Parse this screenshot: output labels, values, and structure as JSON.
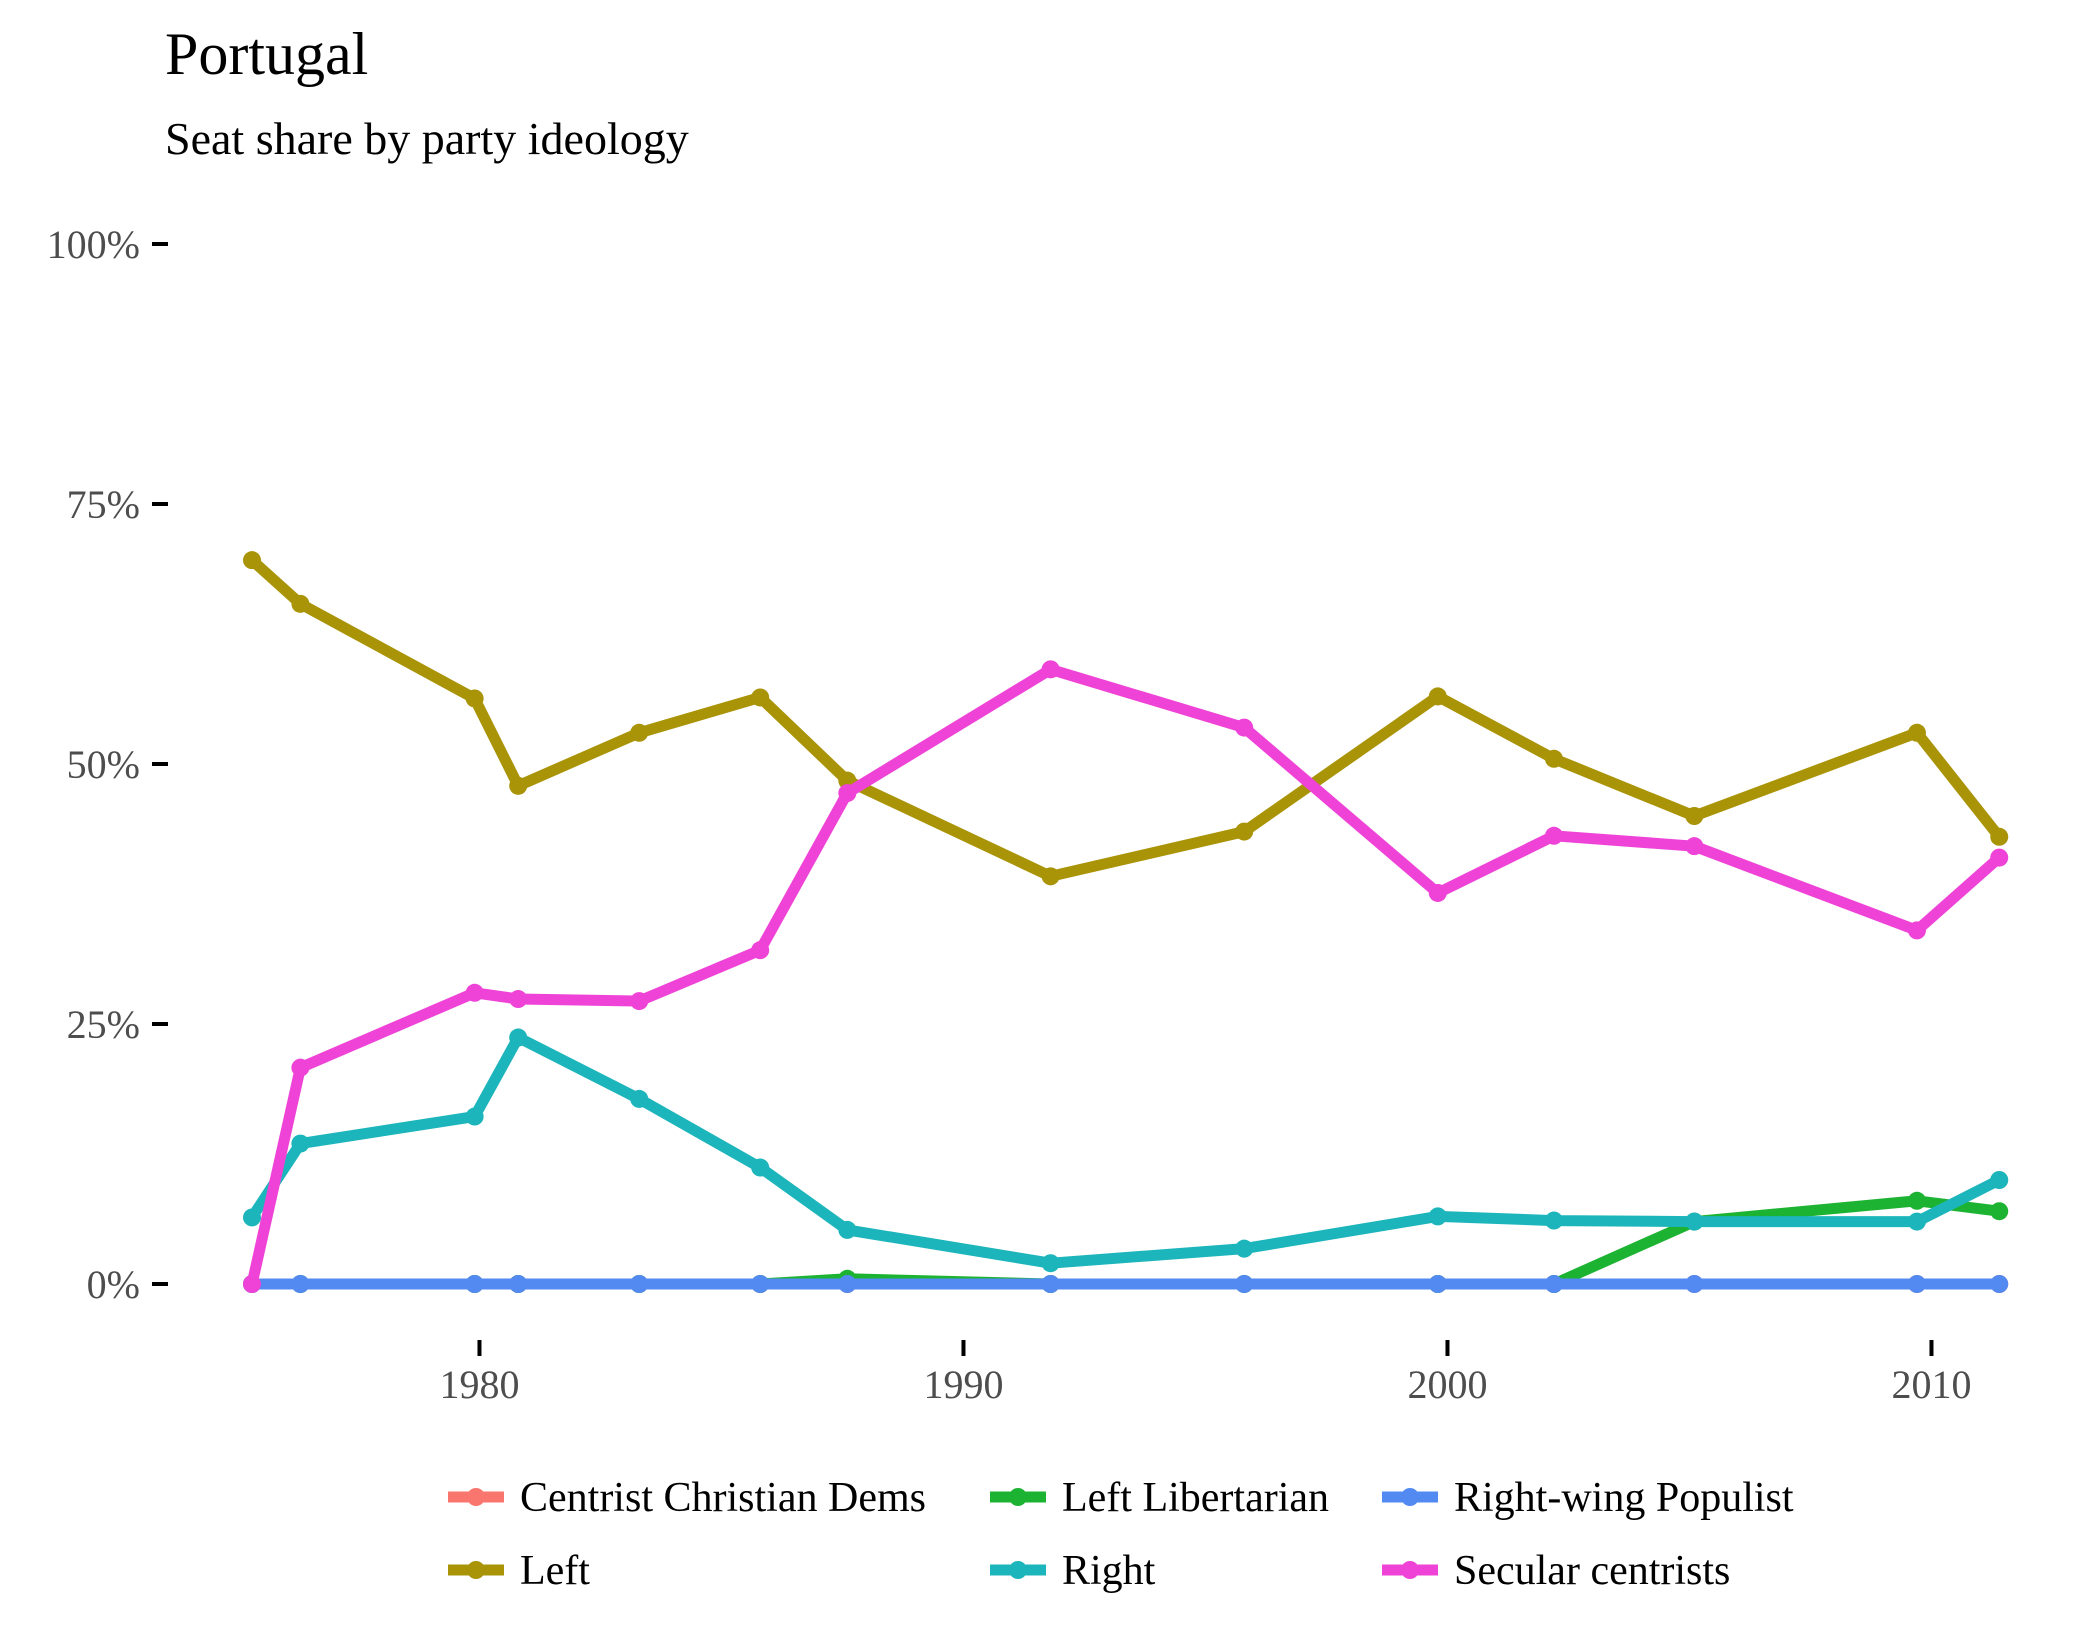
{
  "chart_data": {
    "type": "line",
    "title": "Portugal",
    "subtitle": "Seat share by party ideology",
    "xlabel": "",
    "ylabel": "",
    "x_ticks": [
      "1980",
      "1990",
      "2000",
      "2010"
    ],
    "x_tick_values": [
      1980,
      1990,
      2000,
      2010
    ],
    "y_ticks": [
      "0%",
      "25%",
      "50%",
      "75%",
      "100%"
    ],
    "y_tick_values": [
      0,
      25,
      50,
      75,
      100
    ],
    "xlim": [
      1974.5,
      2012.5
    ],
    "ylim": [
      0,
      100
    ],
    "grid": false,
    "legend_position": "bottom",
    "x": [
      1975.3,
      1976.3,
      1979.9,
      1980.8,
      1983.3,
      1985.8,
      1987.6,
      1991.8,
      1995.8,
      1999.8,
      2002.2,
      2005.1,
      2009.7,
      2011.4
    ],
    "series": [
      {
        "name": "Centrist Christian Dems",
        "color": "#f8766d",
        "values": [
          0,
          0,
          0,
          0,
          0,
          0,
          0,
          0,
          0,
          0,
          0,
          0,
          0,
          0
        ]
      },
      {
        "name": "Left Libertarian",
        "color": "#1db332",
        "values": [
          0,
          0,
          0,
          0,
          0,
          0,
          0.5,
          0,
          0,
          0,
          0,
          6,
          8,
          7
        ]
      },
      {
        "name": "Right-wing Populist",
        "color": "#528af2",
        "values": [
          0,
          0,
          0,
          0,
          0,
          0,
          0,
          0,
          0,
          0,
          0,
          0,
          0,
          0
        ]
      },
      {
        "name": "Left",
        "color": "#a99306",
        "values": [
          69.6,
          65.4,
          56.3,
          47.9,
          53.0,
          56.4,
          48.4,
          39.2,
          43.5,
          56.5,
          50.5,
          45.0,
          53.0,
          43.0
        ]
      },
      {
        "name": "Right",
        "color": "#1cb5bb",
        "values": [
          6.4,
          13.5,
          16.1,
          23.7,
          17.8,
          11.2,
          5.2,
          2.0,
          3.4,
          6.5,
          6.1,
          6.0,
          6.0,
          10.0
        ]
      },
      {
        "name": "Secular centrists",
        "color": "#ef43d7",
        "values": [
          0,
          20.8,
          28.0,
          27.4,
          27.2,
          32.1,
          47.2,
          59.1,
          53.5,
          37.6,
          43.1,
          42.1,
          34.0,
          41.0
        ]
      }
    ],
    "legend_order": [
      0,
      1,
      2,
      3,
      4,
      5
    ]
  }
}
